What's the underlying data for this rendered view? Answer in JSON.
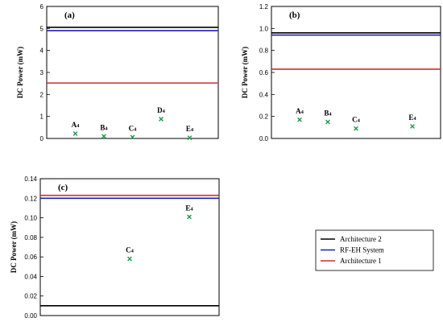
{
  "colors": {
    "architecture_2": "#000000",
    "rf_eh_system": "#1f1fb4",
    "architecture_1": "#d42a2a",
    "measured_points": "#1a9b4b"
  },
  "legend": {
    "items": [
      {
        "label": "Architecture 2",
        "color": "#000000"
      },
      {
        "label": "RF-EH System",
        "color": "#1f1fb4"
      },
      {
        "label": "Architecture 1",
        "color": "#d42a2a"
      }
    ]
  },
  "chart_data": [
    {
      "type": "scatter",
      "panel_tag": "(a)",
      "ylabel": "DC Power (mW)",
      "ylim": [
        0,
        6
      ],
      "yticks": [
        0,
        1,
        2,
        3,
        4,
        5,
        6
      ],
      "ytick_labels": [
        "0",
        "1",
        "2",
        "3",
        "4",
        "5",
        "6"
      ],
      "xlim": [
        0,
        6
      ],
      "series": [
        {
          "key": "architecture_2",
          "kind": "hline",
          "value": 5.05
        },
        {
          "key": "rf_eh_system",
          "kind": "hline",
          "value": 4.9
        },
        {
          "key": "architecture_1",
          "kind": "hline",
          "value": 2.52
        },
        {
          "key": "measured_points",
          "kind": "points",
          "points": [
            {
              "label": "A4",
              "x": 1,
              "y": 0.22
            },
            {
              "label": "B4",
              "x": 2,
              "y": 0.1
            },
            {
              "label": "C4",
              "x": 3,
              "y": 0.06
            },
            {
              "label": "D4",
              "x": 4,
              "y": 0.88
            },
            {
              "label": "E4",
              "x": 5,
              "y": 0.03
            }
          ]
        }
      ]
    },
    {
      "type": "scatter",
      "panel_tag": "(b)",
      "ylabel": "DC Power (mW)",
      "ylim": [
        0,
        1.2
      ],
      "yticks": [
        0,
        0.2,
        0.4,
        0.6,
        0.8,
        1.0,
        1.2
      ],
      "ytick_labels": [
        "0.0",
        "0.2",
        "0.4",
        "0.6",
        "0.8",
        "1.0",
        "1.2"
      ],
      "xlim": [
        0,
        6
      ],
      "series": [
        {
          "key": "architecture_2",
          "kind": "hline",
          "value": 0.96
        },
        {
          "key": "rf_eh_system",
          "kind": "hline",
          "value": 0.94
        },
        {
          "key": "architecture_1",
          "kind": "hline",
          "value": 0.63
        },
        {
          "key": "measured_points",
          "kind": "points",
          "points": [
            {
              "label": "A4",
              "x": 1,
              "y": 0.17
            },
            {
              "label": "B4",
              "x": 2,
              "y": 0.15
            },
            {
              "label": "C4",
              "x": 3,
              "y": 0.09
            },
            {
              "label": "E4",
              "x": 5,
              "y": 0.11
            }
          ]
        }
      ]
    },
    {
      "type": "scatter",
      "panel_tag": "(c)",
      "ylabel": "DC Power (mW)",
      "ylim": [
        0,
        0.14
      ],
      "yticks": [
        0,
        0.02,
        0.04,
        0.06,
        0.08,
        0.1,
        0.12,
        0.14
      ],
      "ytick_labels": [
        "0.00",
        "0.02",
        "0.04",
        "0.06",
        "0.08",
        "0.10",
        "0.12",
        "0.14"
      ],
      "xlim": [
        0,
        6
      ],
      "series": [
        {
          "key": "architecture_1",
          "kind": "hline",
          "value": 0.123
        },
        {
          "key": "rf_eh_system",
          "kind": "hline",
          "value": 0.12
        },
        {
          "key": "architecture_2",
          "kind": "hline",
          "value": 0.01
        },
        {
          "key": "measured_points",
          "kind": "points",
          "points": [
            {
              "label": "C4",
              "x": 3,
              "y": 0.058
            },
            {
              "label": "E4",
              "x": 5,
              "y": 0.101
            }
          ]
        }
      ]
    }
  ]
}
